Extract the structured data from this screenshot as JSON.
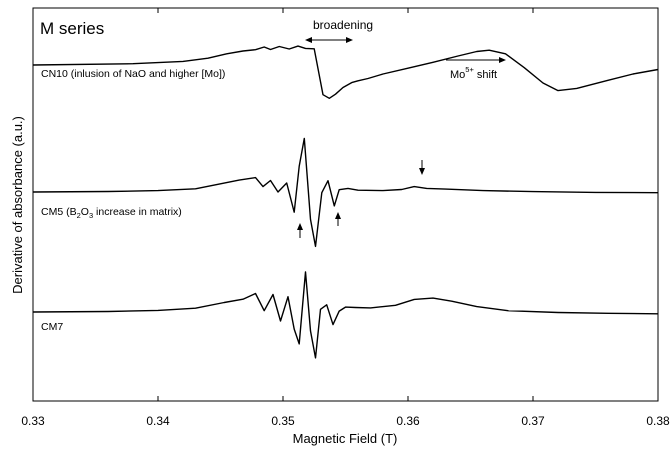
{
  "chart_data": {
    "type": "line",
    "title": "M series",
    "xlabel": "Magnetic Field (T)",
    "ylabel": "Derivative of absorbance (a.u.)",
    "xlim": [
      0.33,
      0.38
    ],
    "x_ticks": [
      "0.33",
      "0.34",
      "0.35",
      "0.36",
      "0.37",
      "0.38"
    ],
    "grid": false,
    "legend": "none",
    "line_color": "#000000",
    "series": [
      {
        "name": "CN10 (inlusion of NaO and higher [Mo])",
        "baseline": 0.8,
        "x": [
          0.33,
          0.338,
          0.342,
          0.344,
          0.3455,
          0.3468,
          0.3478,
          0.3485,
          0.349,
          0.3497,
          0.3505,
          0.3512,
          0.3518,
          0.3525,
          0.3532,
          0.3537,
          0.3542,
          0.3548,
          0.3555,
          0.356,
          0.3568,
          0.358,
          0.36,
          0.362,
          0.364,
          0.3655,
          0.3665,
          0.3678,
          0.3693,
          0.3708,
          0.372,
          0.3735,
          0.376,
          0.378,
          0.38
        ],
        "y": [
          0.8,
          0.87,
          1.0,
          1.18,
          1.42,
          1.58,
          1.65,
          1.8,
          1.66,
          1.83,
          1.69,
          1.85,
          1.72,
          1.7,
          -0.85,
          -1.05,
          -0.82,
          -0.45,
          -0.18,
          -0.08,
          0.05,
          0.3,
          0.62,
          0.95,
          1.3,
          1.55,
          1.62,
          1.42,
          0.65,
          -0.2,
          -0.62,
          -0.5,
          -0.05,
          0.3,
          0.55
        ]
      },
      {
        "name": "CM5",
        "label_main": "CM5 (B",
        "label_sub1": "2",
        "label_mid": "O",
        "label_sub2": "3",
        "label_end": " increase in matrix)",
        "baseline": 0.12,
        "x": [
          0.33,
          0.336,
          0.34,
          0.343,
          0.3448,
          0.3465,
          0.3478,
          0.3484,
          0.349,
          0.3496,
          0.3503,
          0.3509,
          0.3513,
          0.3517,
          0.3522,
          0.3526,
          0.3531,
          0.3536,
          0.3541,
          0.3545,
          0.3552,
          0.356,
          0.358,
          0.3595,
          0.3605,
          0.3615,
          0.363,
          0.366,
          0.37,
          0.375,
          0.38
        ],
        "y": [
          0.12,
          0.15,
          0.2,
          0.3,
          0.55,
          0.78,
          0.92,
          0.42,
          0.76,
          0.12,
          0.62,
          -1.0,
          1.55,
          3.1,
          -1.4,
          -2.9,
          0.08,
          0.75,
          -0.65,
          0.25,
          0.32,
          0.22,
          0.2,
          0.26,
          0.42,
          0.32,
          0.28,
          0.2,
          0.14,
          0.1,
          0.08
        ]
      },
      {
        "name": "CM7",
        "baseline": 0.15,
        "x": [
          0.33,
          0.336,
          0.34,
          0.343,
          0.3453,
          0.3468,
          0.3478,
          0.3485,
          0.3492,
          0.3498,
          0.3504,
          0.3509,
          0.3513,
          0.3518,
          0.3522,
          0.3526,
          0.353,
          0.3535,
          0.354,
          0.3545,
          0.355,
          0.3558,
          0.357,
          0.359,
          0.3605,
          0.362,
          0.3635,
          0.3655,
          0.368,
          0.372,
          0.376,
          0.38
        ],
        "y": [
          0.15,
          0.18,
          0.24,
          0.36,
          0.68,
          0.86,
          1.18,
          0.22,
          1.12,
          -0.35,
          1.0,
          -0.8,
          -1.62,
          2.38,
          -0.9,
          -2.4,
          0.3,
          0.55,
          -0.55,
          0.2,
          0.42,
          0.4,
          0.38,
          0.52,
          0.85,
          0.92,
          0.75,
          0.45,
          0.22,
          0.12,
          0.08,
          0.05
        ]
      }
    ],
    "annotations": {
      "broadening": "broadening",
      "mo_prefix": "Mo",
      "mo_sup": "5+",
      "mo_suffix": " shift"
    }
  }
}
